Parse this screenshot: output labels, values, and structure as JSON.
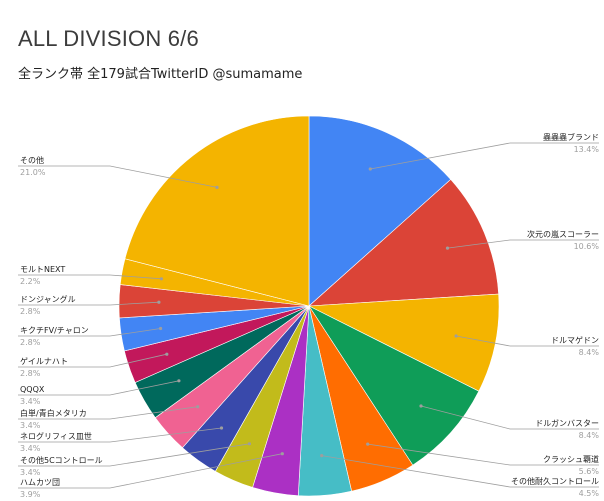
{
  "chart_data": {
    "type": "pie",
    "title": "ALL DIVISION 6/6",
    "subtitle": "全ランク帯 全179試合TwitterID @sumamame",
    "slices": [
      {
        "label": "蟲蟲蟲ブランド",
        "pct_text": "13.4%",
        "value": 13.4,
        "color": "#4285f4"
      },
      {
        "label": "次元の嵐スコーラー",
        "pct_text": "10.6%",
        "value": 10.6,
        "color": "#db4437"
      },
      {
        "label": "ドルマゲドン",
        "pct_text": "8.4%",
        "value": 8.4,
        "color": "#f4b400"
      },
      {
        "label": "ドルガンバスター",
        "pct_text": "8.4%",
        "value": 8.4,
        "color": "#0f9d58"
      },
      {
        "label": "クラッシュ覇道",
        "pct_text": "5.6%",
        "value": 5.6,
        "color": "#ff6d01"
      },
      {
        "label": "その他耐久コントロール",
        "pct_text": "4.5%",
        "value": 4.5,
        "color": "#46bdc6"
      },
      {
        "label": "ハムカツ団",
        "pct_text": "3.9%",
        "value": 3.9,
        "color": "#ab30c4"
      },
      {
        "label": "その他5Cコントロール",
        "pct_text": "3.4%",
        "value": 3.4,
        "color": "#c2bb1b"
      },
      {
        "label": "ネログリフィス皿世",
        "pct_text": "3.4%",
        "value": 3.4,
        "color": "#3949ab"
      },
      {
        "label": "白単/青白メタリカ",
        "pct_text": "3.4%",
        "value": 3.4,
        "color": "#f06292"
      },
      {
        "label": "QQQX",
        "pct_text": "3.4%",
        "value": 3.4,
        "color": "#00695c"
      },
      {
        "label": "ゲイルナハト",
        "pct_text": "2.8%",
        "value": 2.8,
        "color": "#c2185b"
      },
      {
        "label": "キクチFV/チャロン",
        "pct_text": "2.8%",
        "value": 2.8,
        "color": "#4285f4"
      },
      {
        "label": "ドンジャングル",
        "pct_text": "2.8%",
        "value": 2.8,
        "color": "#db4437"
      },
      {
        "label": "モルトNEXT",
        "pct_text": "2.2%",
        "value": 2.2,
        "color": "#f4b400"
      },
      {
        "label": "その他",
        "pct_text": "21.0%",
        "value": 21.0,
        "color": "#f4b400"
      }
    ]
  }
}
